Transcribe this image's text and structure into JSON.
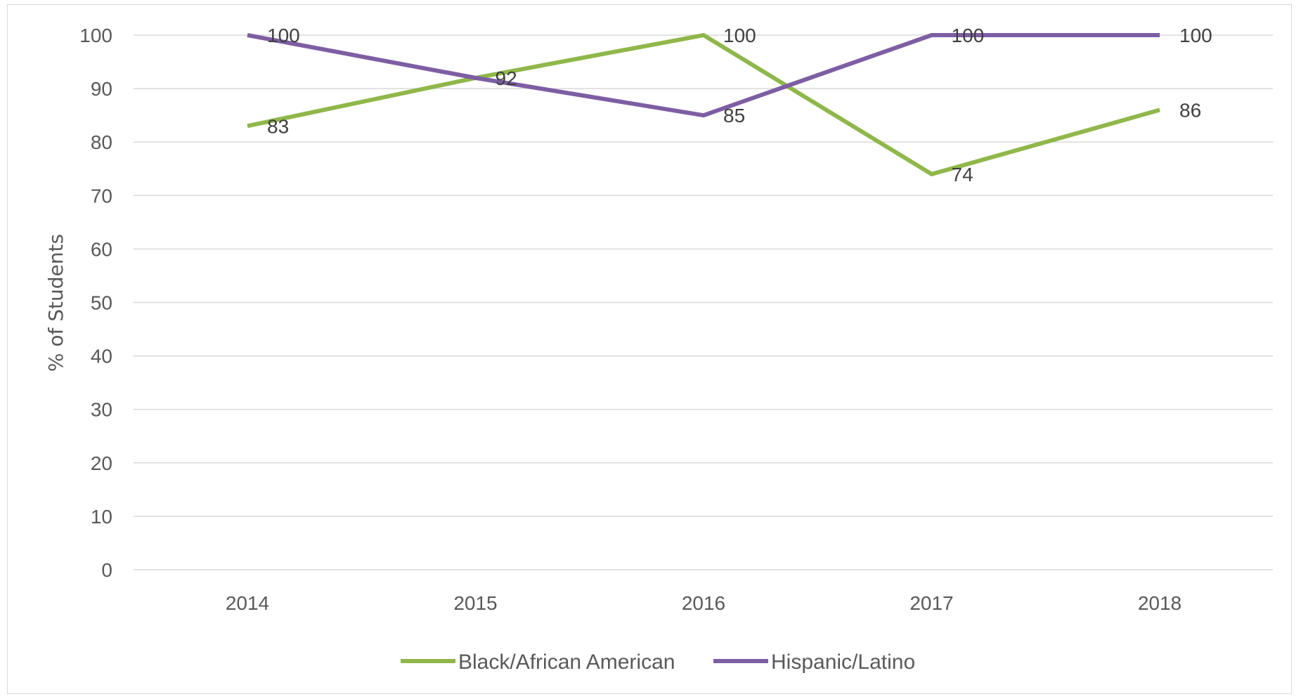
{
  "chart_data": {
    "type": "line",
    "categories": [
      "2014",
      "2015",
      "2016",
      "2017",
      "2018"
    ],
    "series": [
      {
        "name": "Black/African American",
        "values": [
          83,
          92,
          100,
          74,
          86
        ],
        "color": "#8fb74a"
      },
      {
        "name": "Hispanic/Latino",
        "values": [
          100,
          92,
          85,
          100,
          100
        ],
        "color": "#7d5ea3"
      }
    ],
    "title": "",
    "xlabel": "",
    "ylabel": "% of Students",
    "ylim": [
      0,
      100
    ],
    "yticks": [
      "0",
      "10",
      "20",
      "30",
      "40",
      "50",
      "60",
      "70",
      "80",
      "90",
      "100"
    ],
    "grid": true,
    "legend": "bottom",
    "data_labels": [
      {
        "text": "83",
        "x": "2014",
        "y": 83
      },
      {
        "text": "100",
        "x": "2014",
        "y": 100
      },
      {
        "text": "92",
        "x": "2015",
        "y": 92
      },
      {
        "text": "100",
        "x": "2016",
        "y": 100
      },
      {
        "text": "85",
        "x": "2016",
        "y": 85
      },
      {
        "text": "100",
        "x": "2017",
        "y": 100
      },
      {
        "text": "74",
        "x": "2017",
        "y": 74
      },
      {
        "text": "100",
        "x": "2018",
        "y": 100
      },
      {
        "text": "86",
        "x": "2018",
        "y": 86
      }
    ]
  }
}
